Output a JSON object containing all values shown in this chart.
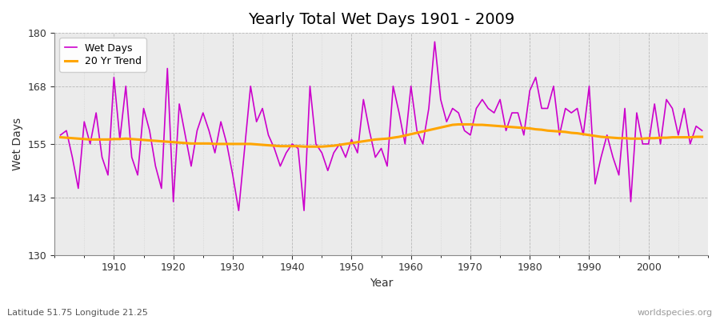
{
  "title": "Yearly Total Wet Days 1901 - 2009",
  "xlabel": "Year",
  "ylabel": "Wet Days",
  "subtitle": "Latitude 51.75 Longitude 21.25",
  "watermark": "worldspecies.org",
  "wet_days_color": "#CC00CC",
  "trend_color": "#FFA500",
  "bg_color": "#FFFFFF",
  "plot_bg_color": "#EBEBEB",
  "ylim": [
    130,
    180
  ],
  "yticks": [
    130,
    143,
    155,
    168,
    180
  ],
  "years": [
    1901,
    1902,
    1903,
    1904,
    1905,
    1906,
    1907,
    1908,
    1909,
    1910,
    1911,
    1912,
    1913,
    1914,
    1915,
    1916,
    1917,
    1918,
    1919,
    1920,
    1921,
    1922,
    1923,
    1924,
    1925,
    1926,
    1927,
    1928,
    1929,
    1930,
    1931,
    1932,
    1933,
    1934,
    1935,
    1936,
    1937,
    1938,
    1939,
    1940,
    1941,
    1942,
    1943,
    1944,
    1945,
    1946,
    1947,
    1948,
    1949,
    1950,
    1951,
    1952,
    1953,
    1954,
    1955,
    1956,
    1957,
    1958,
    1959,
    1960,
    1961,
    1962,
    1963,
    1964,
    1965,
    1966,
    1967,
    1968,
    1969,
    1970,
    1971,
    1972,
    1973,
    1974,
    1975,
    1976,
    1977,
    1978,
    1979,
    1980,
    1981,
    1982,
    1983,
    1984,
    1985,
    1986,
    1987,
    1988,
    1989,
    1990,
    1991,
    1992,
    1993,
    1994,
    1995,
    1996,
    1997,
    1998,
    1999,
    2000,
    2001,
    2002,
    2003,
    2004,
    2005,
    2006,
    2007,
    2008,
    2009
  ],
  "wet_days": [
    157,
    158,
    152,
    145,
    160,
    155,
    162,
    152,
    148,
    170,
    156,
    168,
    152,
    148,
    163,
    158,
    150,
    145,
    172,
    142,
    164,
    157,
    150,
    158,
    162,
    158,
    153,
    160,
    155,
    148,
    140,
    154,
    168,
    160,
    163,
    157,
    154,
    150,
    153,
    155,
    154,
    140,
    168,
    155,
    153,
    149,
    153,
    155,
    152,
    156,
    153,
    165,
    158,
    152,
    154,
    150,
    168,
    162,
    155,
    168,
    158,
    155,
    163,
    178,
    165,
    160,
    163,
    162,
    158,
    157,
    163,
    165,
    163,
    162,
    165,
    158,
    162,
    162,
    157,
    167,
    170,
    163,
    163,
    168,
    157,
    163,
    162,
    163,
    157,
    168,
    146,
    152,
    157,
    152,
    148,
    163,
    142,
    162,
    155,
    155,
    164,
    155,
    165,
    163,
    157,
    163,
    155,
    159,
    158
  ],
  "trend": [
    156.5,
    156.4,
    156.3,
    156.2,
    156.1,
    156.0,
    156.0,
    156.0,
    156.0,
    156.1,
    156.1,
    156.2,
    156.1,
    156.0,
    155.9,
    155.8,
    155.7,
    155.6,
    155.5,
    155.4,
    155.3,
    155.2,
    155.1,
    155.1,
    155.1,
    155.1,
    155.0,
    155.0,
    155.0,
    155.0,
    155.0,
    155.0,
    155.0,
    154.9,
    154.8,
    154.7,
    154.6,
    154.5,
    154.5,
    154.5,
    154.5,
    154.4,
    154.4,
    154.4,
    154.4,
    154.5,
    154.6,
    154.8,
    155.0,
    155.2,
    155.4,
    155.6,
    155.8,
    156.0,
    156.1,
    156.2,
    156.4,
    156.6,
    156.9,
    157.2,
    157.5,
    157.8,
    158.1,
    158.4,
    158.7,
    159.0,
    159.3,
    159.4,
    159.4,
    159.4,
    159.3,
    159.3,
    159.2,
    159.1,
    159.0,
    158.9,
    158.8,
    158.7,
    158.6,
    158.5,
    158.3,
    158.2,
    158.0,
    157.9,
    157.8,
    157.7,
    157.5,
    157.4,
    157.2,
    157.0,
    156.8,
    156.6,
    156.5,
    156.4,
    156.3,
    156.3,
    156.2,
    156.2,
    156.2,
    156.3,
    156.3,
    156.4,
    156.4,
    156.5,
    156.5,
    156.5,
    156.5,
    156.6,
    156.6
  ]
}
